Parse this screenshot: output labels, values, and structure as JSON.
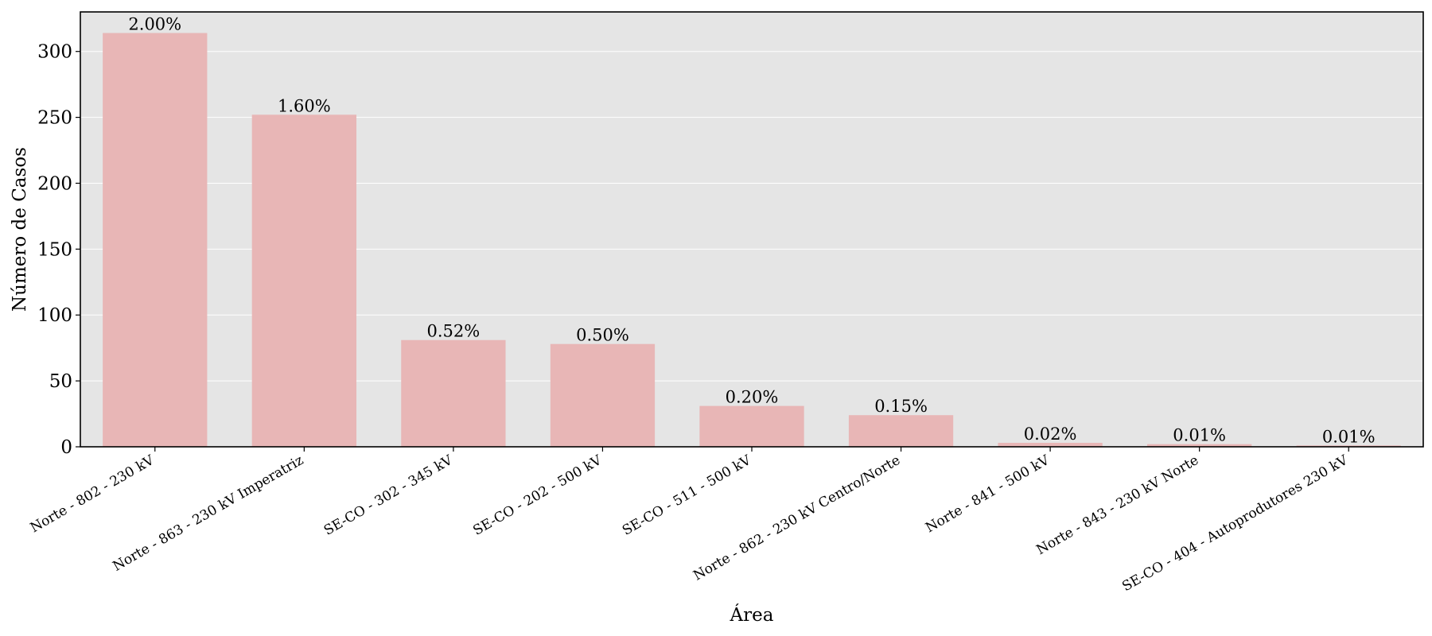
{
  "chart_data": {
    "type": "bar",
    "xlabel": "Área",
    "ylabel": "Número de Casos",
    "categories": [
      "Norte - 802 - 230 kV",
      "Norte - 863 - 230 kV Imperatriz",
      "SE-CO - 302 - 345 kV",
      "SE-CO - 202 - 500 kV",
      "SE-CO - 511 - 500 kV",
      "Norte - 862 - 230 kV Centro/Norte",
      "Norte - 841 - 500 kV",
      "Norte - 843 - 230 kV Norte",
      "SE-CO - 404 - Autoprodutores 230 kV"
    ],
    "values": [
      314,
      252,
      81,
      78,
      31,
      24,
      3,
      2,
      1
    ],
    "data_labels": [
      "2.00%",
      "1.60%",
      "0.52%",
      "0.50%",
      "0.20%",
      "0.15%",
      "0.02%",
      "0.01%",
      "0.01%"
    ],
    "ylim": [
      0,
      330
    ],
    "yticks": [
      0,
      50,
      100,
      150,
      200,
      250,
      300
    ],
    "grid": true,
    "colors": {
      "bar": "#e8b6b6",
      "plot_background": "#e5e5e5",
      "grid": "#ffffff",
      "axis": "#000000"
    }
  }
}
